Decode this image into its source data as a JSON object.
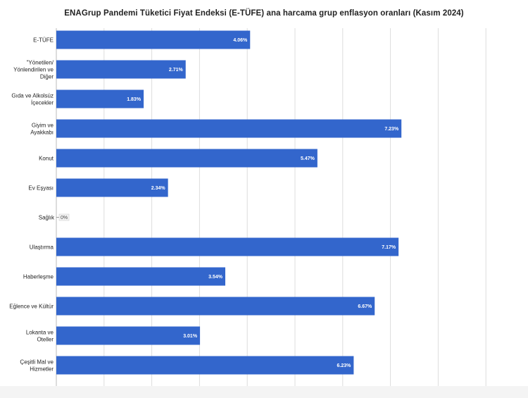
{
  "chart_data": {
    "type": "bar",
    "orientation": "horizontal",
    "title": "ENAGrup Pandemi Tüketici Fiyat Endeksi (E-TÜFE) ana harcama grup enflasyon oranları (Kasım 2024)",
    "categories": [
      [
        "E-TÜFE"
      ],
      [
        "\"Yönetilen/",
        "Yönlendirilen ve",
        "Diğer"
      ],
      [
        "Gıda ve Alkolsüz",
        "İçecekler"
      ],
      [
        "Giyim ve",
        "Ayakkabı"
      ],
      [
        "Konut"
      ],
      [
        "Ev Eşyası"
      ],
      [
        "Sağlık"
      ],
      [
        "Ulaştırma"
      ],
      [
        "Haberleşme"
      ],
      [
        "Eğlence ve Kültür"
      ],
      [
        "Lokanta ve",
        "Oteller"
      ],
      [
        "Çeşitli Mal ve",
        "Hizmetler"
      ]
    ],
    "values": [
      4.06,
      2.71,
      1.83,
      7.23,
      5.47,
      2.34,
      0,
      7.17,
      3.54,
      6.67,
      3.01,
      6.23
    ],
    "value_labels": [
      "4.06%",
      "2.71%",
      "1.83%",
      "7.23%",
      "5.47%",
      "2.34%",
      "0%",
      "7.17%",
      "3.54%",
      "6.67%",
      "3.01%",
      "6.23%"
    ],
    "xlim": [
      0,
      8
    ],
    "grid": true,
    "legend": "none",
    "bar_color": "#3366cc",
    "grid_color": "#dddddd"
  }
}
